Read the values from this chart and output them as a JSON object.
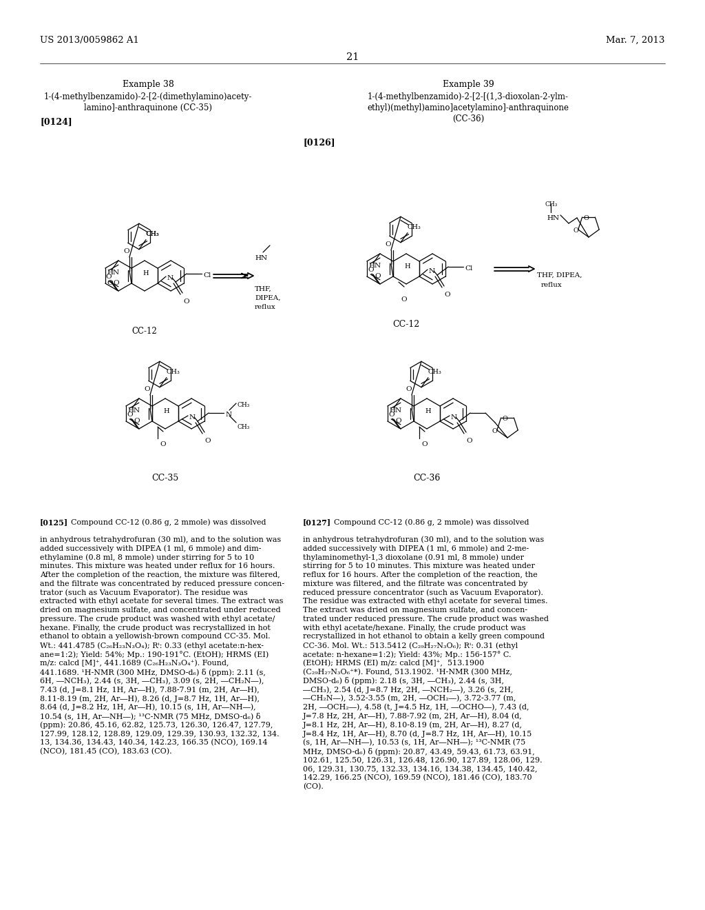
{
  "background_color": "#ffffff",
  "header_left": "US 2013/0059862 A1",
  "header_right": "Mar. 7, 2013",
  "page_number": "21",
  "ex38_title": "Example 38",
  "ex38_name1": "1-(4-methylbenzamido)-2-[2-(dimethylamino)acety-",
  "ex38_name2": "lamino]-anthraquinone (CC-35)",
  "ex39_title": "Example 39",
  "ex39_name1": "1-(4-methylbenzamido)-2-[2-[(1,3-dioxolan-2-ylm-",
  "ex39_name2": "ethyl)(methyl)amino]acetylamino]-anthraquinone",
  "ex39_name3": "(CC-36)",
  "para124": "[0124]",
  "para126": "[0126]",
  "left_body": [
    "[0125]",
    "Compound CC-12 (0.86 g, 2 mmole) was dissolved",
    "in anhydrous tetrahydrofuran (30 ml), and to the solution was",
    "added successively with DIPEA (1 ml, 6 mmole) and dim-",
    "ethylamine (0.8 ml, 8 mmole) under stirring for 5 to 10",
    "minutes. This mixture was heated under reflux for 16 hours.",
    "After the completion of the reaction, the mixture was filtered,",
    "and the filtrate was concentrated by reduced pressure concen-",
    "trator (such as Vacuum Evaporator). The residue was",
    "extracted with ethyl acetate for several times. The extract was",
    "dried on magnesium sulfate, and concentrated under reduced",
    "pressure. The crude product was washed with ethyl acetate/",
    "hexane. Finally, the crude product was recrystallized in hot",
    "ethanol to obtain a yellowish-brown compound CC-35. Mol.",
    "Wt.: 441.4785 (C₂₆H₂₃N₃O₄); Rⁱ: 0.33 (ethyl acetate:n-hex-",
    "ane=1:2); Yield: 54%; Mp.: 190-191°C. (EtOH); HRMS (EI)",
    "m/z: calcd [M]⁺, 441.1689 (C₂₆H₂₃N₃O₄⁺). Found,",
    "441.1689. ¹H-NMR (300 MHz, DMSO-d₆) δ (ppm): 2.11 (s,",
    "6H, ―NCH₃), 2.44 (s, 3H, ―CH₃), 3.09 (s, 2H, ―CH₂N―),",
    "7.43 (d, J=8.1 Hz, 1H, Ar―H), 7.88-7.91 (m, 2H, Ar―H),",
    "8.11-8.19 (m, 2H, Ar―H), 8.26 (d, J=8.7 Hz, 1H, Ar―H),",
    "8.64 (d, J=8.2 Hz, 1H, Ar―H), 10.15 (s, 1H, Ar―NH―),",
    "10.54 (s, 1H, Ar―NH―); ¹³C-NMR (75 MHz, DMSO-d₆) δ",
    "(ppm): 20.86, 45.16, 62.82, 125.73, 126.30, 126.47, 127.79,",
    "127.99, 128.12, 128.89, 129.09, 129.39, 130.93, 132.32, 134.",
    "13, 134.36, 134.43, 140.34, 142.23, 166.35 (NCO), 169.14",
    "(NCO), 181.45 (CO), 183.63 (CO)."
  ],
  "right_body": [
    "[0127]",
    "Compound CC-12 (0.86 g, 2 mmole) was dissolved",
    "in anhydrous tetrahydrofuran (30 ml), and to the solution was",
    "added successively with DIPEA (1 ml, 6 mmole) and 2-me-",
    "thylaminomethyl-1,3 dioxolane (0.91 ml, 8 mmole) under",
    "stirring for 5 to 10 minutes. This mixture was heated under",
    "reflux for 16 hours. After the completion of the reaction, the",
    "mixture was filtered, and the filtrate was concentrated by",
    "reduced pressure concentrator (such as Vacuum Evaporator).",
    "The residue was extracted with ethyl acetate for several times.",
    "The extract was dried on magnesium sulfate, and concen-",
    "trated under reduced pressure. The crude product was washed",
    "with ethyl acetate/hexane. Finally, the crude product was",
    "recrystallized in hot ethanol to obtain a kelly green compound",
    "CC-36. Mol. Wt.: 513.5412 (C₂₉H₂₇N₃O₆); Rⁱ: 0.31 (ethyl",
    "acetate: n-hexane=1:2); Yield: 43%; Mp.: 156-157° C.",
    "(EtOH); HRMS (EI) m/z: calcd [M]⁺,  513.1900",
    "(C₂₉H₂₇N₃O₆⁺*). Found, 513.1902. ¹H-NMR (300 MHz,",
    "DMSO-d₆) δ (ppm): 2.18 (s, 3H, ―CH₃), 2.44 (s, 3H,",
    "―CH₃), 2.54 (d, J=8.7 Hz, 2H, ―NCH₂―), 3.26 (s, 2H,",
    "―CH₂N―), 3.52-3.55 (m, 2H, ―OCH₂―), 3.72-3.77 (m,",
    "2H, ―OCH₂―), 4.58 (t, J=4.5 Hz, 1H, ―OCHO―), 7.43 (d,",
    "J=7.8 Hz, 2H, Ar―H), 7.88-7.92 (m, 2H, Ar―H), 8.04 (d,",
    "J=8.1 Hz, 2H, Ar―H), 8.10-8.19 (m, 2H, Ar―H), 8.27 (d,",
    "J=8.4 Hz, 1H, Ar―H), 8.70 (d, J=8.7 Hz, 1H, Ar―H), 10.15",
    "(s, 1H, Ar―NH―), 10.53 (s, 1H, Ar―NH―); ¹³C-NMR (75",
    "MHz, DMSO-d₆) δ (ppm): 20.87, 43.49, 59.43, 61.73, 63.91,",
    "102.61, 125.50, 126.31, 126.48, 126.90, 127.89, 128.06, 129.",
    "06, 129.31, 130.75, 132.33, 134.16, 134.38, 134.45, 140.42,",
    "142.29, 166.25 (NCO), 169.59 (NCO), 181.46 (CO), 183.70",
    "(CO)."
  ]
}
